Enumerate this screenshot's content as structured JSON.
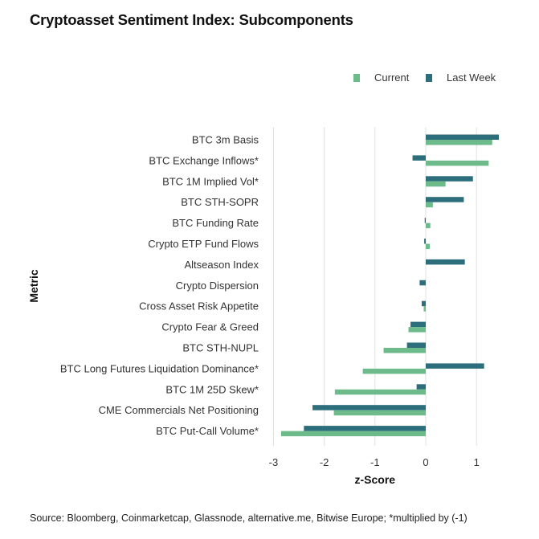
{
  "title": "Cryptoasset Sentiment Index: Subcomponents",
  "source": "Source: Bloomberg, Coinmarketcap, Glassnode, alternative.me, Bitwise Europe; *multiplied by (-1)",
  "colors": {
    "current": "#6dbb8a",
    "last_week": "#2c6e7c",
    "grid": "#e0e0e0"
  },
  "chart_data": {
    "type": "bar",
    "orientation": "horizontal",
    "title": "Cryptoasset Sentiment Index: Subcomponents",
    "xlabel": "z-Score",
    "ylabel": "Metric",
    "xlim": [
      -3.1,
      1.45
    ],
    "xticks": [
      -3,
      -2,
      -1,
      0,
      1
    ],
    "xtick_labels": [
      "-3",
      "-2",
      "-1",
      "0",
      "1"
    ],
    "grid": true,
    "legend_position": "top-right",
    "categories": [
      "BTC 3m Basis",
      "BTC Exchange Inflows*",
      "BTC 1M Implied Vol*",
      "BTC STH-SOPR",
      "BTC Funding Rate",
      "Crypto ETP Fund Flows",
      "Altseason Index",
      "Crypto Dispersion",
      "Cross Asset Risk Appetite",
      "Crypto Fear & Greed",
      "BTC STH-NUPL",
      "BTC Long Futures Liquidation Dominance*",
      "BTC 1M 25D Skew*",
      "CME Commercials Net Positioning",
      "BTC Put-Call Volume*"
    ],
    "series": [
      {
        "name": "Current",
        "values": [
          1.31,
          1.24,
          0.39,
          0.14,
          0.09,
          0.08,
          0.0,
          0.0,
          -0.04,
          -0.34,
          -0.83,
          -1.24,
          -1.79,
          -1.81,
          -2.85
        ]
      },
      {
        "name": "Last Week",
        "values": [
          1.44,
          -0.26,
          0.93,
          0.75,
          -0.02,
          -0.03,
          0.77,
          -0.12,
          -0.08,
          -0.3,
          -0.37,
          1.15,
          -0.18,
          -2.23,
          -2.4
        ]
      }
    ]
  }
}
